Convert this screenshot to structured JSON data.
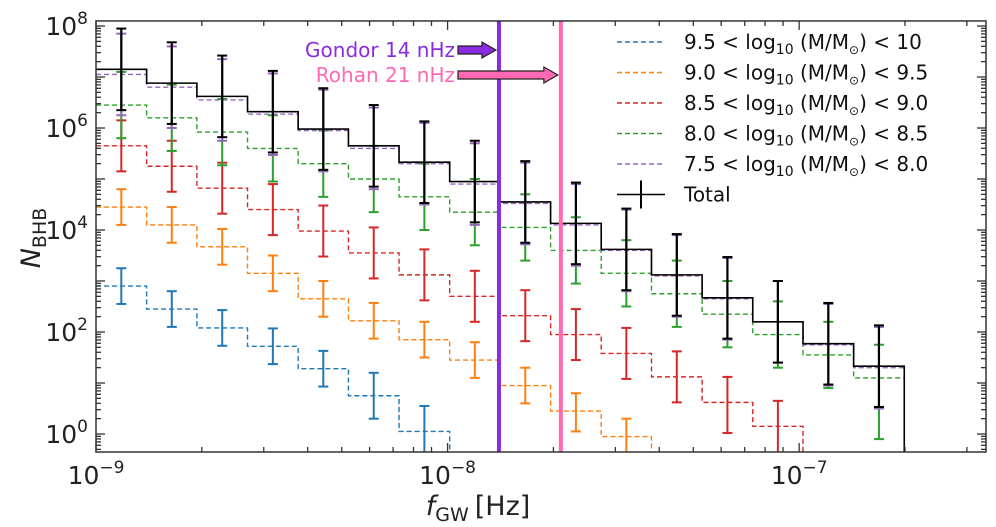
{
  "chart_data": {
    "type": "line",
    "subtype": "step-histogram-with-errorbars",
    "xlabel": "f",
    "xlabel_sub": "GW",
    "xlabel_unit": "[Hz]",
    "ylabel": "N",
    "ylabel_sub": "BHB",
    "xscale": "log",
    "yscale": "log",
    "xlim": [
      1e-09,
      3.4e-07
    ],
    "ylim": [
      0.45,
      120000000.0
    ],
    "x_ticks": [
      {
        "value": 1e-09,
        "base": "10",
        "exp": "−9"
      },
      {
        "value": 1e-08,
        "base": "10",
        "exp": "−8"
      },
      {
        "value": 1e-07,
        "base": "10",
        "exp": "−7"
      }
    ],
    "y_ticks": [
      {
        "value": 1,
        "base": "10",
        "exp": "0"
      },
      {
        "value": 100,
        "base": "10",
        "exp": "2"
      },
      {
        "value": 10000,
        "base": "10",
        "exp": "4"
      },
      {
        "value": 1000000,
        "base": "10",
        "exp": "6"
      },
      {
        "value": 100000000,
        "base": "10",
        "exp": "8"
      }
    ],
    "grid": false,
    "legend_position": "top-right",
    "bin_edges_log10": [
      -9.0,
      -8.856,
      -8.713,
      -8.569,
      -8.425,
      -8.282,
      -8.138,
      -7.994,
      -7.851,
      -7.707,
      -7.563,
      -7.42,
      -7.276,
      -7.132,
      -6.989,
      -6.845,
      -6.701,
      -6.558,
      -6.47
    ],
    "series": [
      {
        "name": "9.5 < log10(M/M⊙) < 10",
        "legend_prefix": "9.5",
        "legend_suffix": "10",
        "color": "#1f77b4",
        "style": "dashed",
        "log10_values": [
          2.9,
          2.45,
          2.08,
          1.72,
          1.28,
          0.75,
          0.05
        ],
        "log10_err_low": [
          0.35,
          0.35,
          0.35,
          0.35,
          0.35,
          0.45,
          1.0
        ],
        "log10_err_high": [
          0.35,
          0.35,
          0.35,
          0.35,
          0.35,
          0.45,
          0.5
        ]
      },
      {
        "name": "9.0 < log10(M/M⊙) < 9.5",
        "legend_prefix": "9.0",
        "legend_suffix": "9.5",
        "color": "#ff7f0e",
        "style": "dashed",
        "log10_values": [
          4.45,
          4.1,
          3.67,
          3.15,
          2.65,
          2.22,
          1.85,
          1.45,
          0.95,
          0.45,
          -0.05
        ],
        "log10_err_low": [
          0.35,
          0.35,
          0.35,
          0.35,
          0.35,
          0.35,
          0.35,
          0.35,
          0.35,
          0.4,
          0.5
        ],
        "log10_err_high": [
          0.35,
          0.35,
          0.35,
          0.35,
          0.35,
          0.35,
          0.35,
          0.35,
          0.35,
          0.35,
          0.35
        ]
      },
      {
        "name": "8.5 < log10(M/M⊙) < 9.0",
        "legend_prefix": "8.5",
        "legend_suffix": "9.0",
        "color": "#d62728",
        "style": "dashed",
        "log10_values": [
          5.65,
          5.25,
          4.82,
          4.4,
          3.98,
          3.55,
          3.12,
          2.7,
          2.32,
          1.95,
          1.58,
          1.12,
          0.62,
          0.15
        ],
        "log10_err_low": [
          0.5,
          0.5,
          0.5,
          0.5,
          0.5,
          0.5,
          0.5,
          0.5,
          0.5,
          0.5,
          0.5,
          0.5,
          0.6,
          0.7
        ],
        "log10_err_high": [
          0.5,
          0.5,
          0.5,
          0.5,
          0.5,
          0.5,
          0.5,
          0.5,
          0.5,
          0.5,
          0.5,
          0.5,
          0.5,
          0.5
        ]
      },
      {
        "name": "8.0 < log10(M/M⊙) < 8.5",
        "legend_prefix": "8.0",
        "legend_suffix": "8.5",
        "color": "#2ca02c",
        "style": "dashed",
        "log10_values": [
          6.45,
          6.2,
          5.92,
          5.6,
          5.3,
          5.0,
          4.65,
          4.35,
          4.05,
          3.6,
          3.15,
          2.75,
          2.35,
          1.95,
          1.55,
          1.1
        ],
        "log10_err_low": [
          0.65,
          0.65,
          0.65,
          0.65,
          0.65,
          0.65,
          0.65,
          0.65,
          0.65,
          0.65,
          0.65,
          0.65,
          0.65,
          0.65,
          0.65,
          1.2
        ],
        "log10_err_high": [
          0.65,
          0.65,
          0.65,
          0.65,
          0.65,
          0.65,
          0.65,
          0.65,
          0.65,
          0.65,
          0.65,
          0.65,
          0.65,
          0.65,
          0.65,
          0.65
        ]
      },
      {
        "name": "7.5 < log10(M/M⊙) < 8.0",
        "legend_prefix": "7.5",
        "legend_suffix": "8.0",
        "color": "#9467bd",
        "style": "dashed",
        "log10_values": [
          7.05,
          6.8,
          6.55,
          6.27,
          5.95,
          5.6,
          5.3,
          4.9,
          4.52,
          4.1,
          3.6,
          3.1,
          2.65,
          2.2,
          1.75,
          1.3
        ],
        "log10_err_low": [
          0.8,
          0.8,
          0.8,
          0.8,
          0.8,
          0.8,
          0.8,
          0.8,
          0.8,
          0.8,
          0.8,
          0.8,
          0.8,
          0.8,
          0.8,
          0.8
        ],
        "log10_err_high": [
          0.8,
          0.8,
          0.8,
          0.8,
          0.8,
          0.8,
          0.8,
          0.8,
          0.8,
          0.8,
          0.8,
          0.8,
          0.8,
          0.8,
          0.8,
          0.8
        ]
      },
      {
        "name": "Total",
        "color": "#000000",
        "style": "solid",
        "log10_values": [
          7.15,
          6.88,
          6.62,
          6.32,
          5.98,
          5.65,
          5.33,
          4.95,
          4.55,
          4.13,
          3.62,
          3.12,
          2.67,
          2.2,
          1.77,
          1.33
        ],
        "log10_err_low": [
          0.8,
          0.8,
          0.8,
          0.8,
          0.8,
          0.8,
          0.8,
          0.8,
          0.8,
          0.8,
          0.8,
          0.8,
          0.8,
          0.8,
          0.8,
          0.8
        ],
        "log10_err_high": [
          0.8,
          0.8,
          0.8,
          0.8,
          0.8,
          0.8,
          0.8,
          0.8,
          0.8,
          0.8,
          0.8,
          0.8,
          0.8,
          0.8,
          0.8,
          0.8
        ]
      }
    ],
    "vertical_lines": [
      {
        "name": "Gondor",
        "x": 1.4e-08,
        "color": "#8a2be2",
        "label": "Gondor 14 nHz"
      },
      {
        "name": "Rohan",
        "x": 2.1e-08,
        "color": "#ff69b4",
        "label": "Rohan 21 nHz"
      }
    ],
    "legend": {
      "math_middle": "< log",
      "math_sub": "10",
      "math_paren": "(M/M",
      "math_sun": "⊙",
      "math_close": ")",
      "lt": "<",
      "total_label": "Total"
    }
  }
}
